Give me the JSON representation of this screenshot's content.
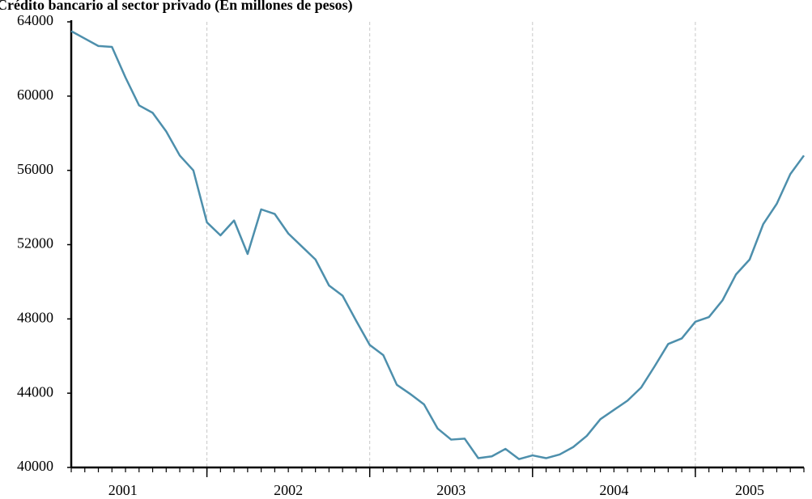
{
  "chart_data": {
    "type": "line",
    "title": "Crédito bancario al sector privado (En millones de pesos)",
    "x": [
      2001.1667,
      2001.25,
      2001.3333,
      2001.4167,
      2001.5,
      2001.5833,
      2001.6667,
      2001.75,
      2001.8333,
      2001.9167,
      2002.0,
      2002.0833,
      2002.1667,
      2002.25,
      2002.3333,
      2002.4167,
      2002.5,
      2002.5833,
      2002.6667,
      2002.75,
      2002.8333,
      2002.9167,
      2003.0,
      2003.0833,
      2003.1667,
      2003.25,
      2003.3333,
      2003.4167,
      2003.5,
      2003.5833,
      2003.6667,
      2003.75,
      2003.8333,
      2003.9167,
      2004.0,
      2004.0833,
      2004.1667,
      2004.25,
      2004.3333,
      2004.4167,
      2004.5,
      2004.5833,
      2004.6667,
      2004.75,
      2004.8333,
      2004.9167,
      2005.0,
      2005.0833,
      2005.1667,
      2005.25,
      2005.3333,
      2005.4167,
      2005.5,
      2005.5833,
      2005.6667
    ],
    "values": [
      63500,
      63100,
      62700,
      62650,
      61000,
      59500,
      59100,
      58100,
      56800,
      56000,
      53200,
      52500,
      53300,
      51500,
      53900,
      53650,
      52600,
      51900,
      51200,
      49800,
      49250,
      47900,
      46600,
      46050,
      44450,
      43950,
      43400,
      42100,
      41500,
      41550,
      40500,
      40600,
      41000,
      40450,
      40650,
      40500,
      40700,
      41100,
      41700,
      42600,
      43100,
      43600,
      44300,
      45450,
      46650,
      46950,
      47850,
      48100,
      49000,
      50400,
      51200,
      53100,
      54200,
      55800,
      56800
    ],
    "color": "#4d8fac",
    "xlim": [
      2001.1667,
      2005.6667
    ],
    "xticks": [
      2001,
      2002,
      2003,
      2004,
      2005
    ],
    "ylim": [
      40000,
      64000
    ],
    "yticks": [
      40000,
      44000,
      48000,
      52000,
      56000,
      60000,
      64000
    ],
    "grid": true
  }
}
